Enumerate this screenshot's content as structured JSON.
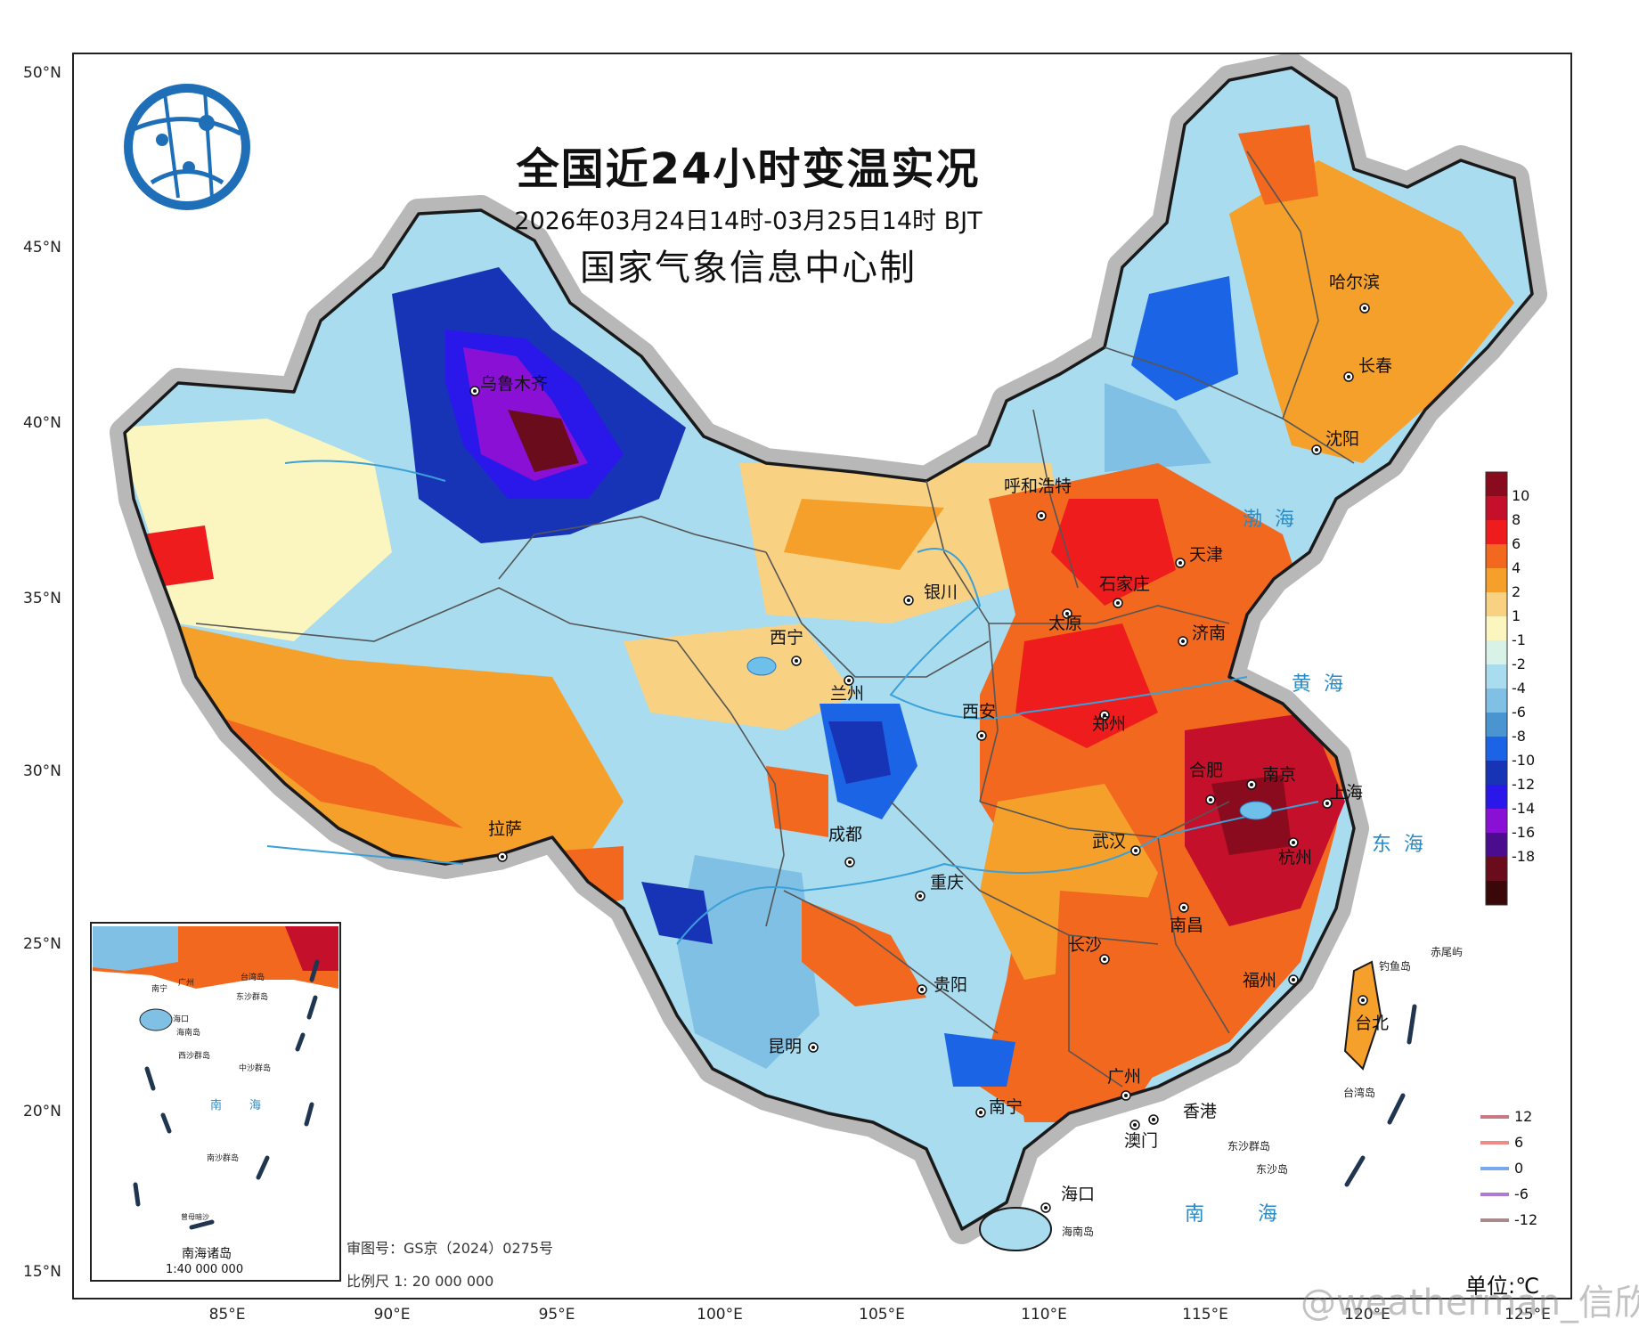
{
  "title": "全国近24小时变温实况",
  "time_range": "2026年03月24日14时-03月25日14时 BJT",
  "issuer": "国家气象信息中心制",
  "lat_labels": [
    "50°N",
    "45°N",
    "40°N",
    "35°N",
    "30°N",
    "25°N",
    "20°N",
    "15°N"
  ],
  "lon_labels": [
    "85°E",
    "90°E",
    "95°E",
    "100°E",
    "105°E",
    "110°E",
    "115°E",
    "120°E",
    "125°E"
  ],
  "cities": [
    {
      "name": "乌鲁木齐"
    },
    {
      "name": "哈尔滨"
    },
    {
      "name": "长春"
    },
    {
      "name": "沈阳"
    },
    {
      "name": "呼和浩特"
    },
    {
      "name": "天津"
    },
    {
      "name": "石家庄"
    },
    {
      "name": "银川"
    },
    {
      "name": "太原"
    },
    {
      "name": "济南"
    },
    {
      "name": "西宁"
    },
    {
      "name": "兰州"
    },
    {
      "name": "西安"
    },
    {
      "name": "郑州"
    },
    {
      "name": "合肥"
    },
    {
      "name": "南京"
    },
    {
      "name": "上海"
    },
    {
      "name": "拉萨"
    },
    {
      "name": "成都"
    },
    {
      "name": "武汉"
    },
    {
      "name": "杭州"
    },
    {
      "name": "重庆"
    },
    {
      "name": "南昌"
    },
    {
      "name": "长沙"
    },
    {
      "name": "福州"
    },
    {
      "name": "贵阳"
    },
    {
      "name": "台北"
    },
    {
      "name": "昆明"
    },
    {
      "name": "广州"
    },
    {
      "name": "南宁"
    },
    {
      "name": "香港"
    },
    {
      "name": "澳门"
    },
    {
      "name": "海口"
    }
  ],
  "seas": {
    "bohai": "渤海",
    "huanghai": "黄海",
    "donghai": "东海",
    "nanhai": "南海"
  },
  "small_labels": {
    "taiwan_island": "台湾岛",
    "hainan_island": "海南岛",
    "dongsha": "东沙群岛",
    "dongsha_dao": "东沙岛",
    "diaoyu": "钓鱼岛",
    "chiwei": "赤尾屿",
    "inset_south": "南",
    "inset_sea": "海",
    "inset_nansha": "南沙群岛",
    "inset_xisha": "西沙群岛",
    "inset_zhongsha": "中沙群岛",
    "inset_dongsha": "东沙群岛",
    "inset_taiwan": "台湾岛",
    "inset_haikou": "海口",
    "inset_hainan": "海南岛",
    "inset_nanning": "南宁",
    "inset_guangzhou": "广州",
    "inset_zengmu": "曾母暗沙"
  },
  "inset": {
    "title": "南海诸岛",
    "scale": "1:40 000 000"
  },
  "footnotes": {
    "approval": "审图号：GS京（2024）0275号",
    "scale": "比例尺  1:  20 000 000"
  },
  "unit": "单位:℃",
  "watermark": "@weatherman_信欣",
  "colorbar": {
    "labels": [
      "10",
      "8",
      "6",
      "4",
      "2",
      "1",
      "-1",
      "-2",
      "-4",
      "-6",
      "-8",
      "-10",
      "-12",
      "-14",
      "-16",
      "-18"
    ],
    "colors": [
      "#8a0a1e",
      "#c4102a",
      "#ee1c1c",
      "#f2681e",
      "#f6a02c",
      "#f8d282",
      "#fbf6c0",
      "#d8f2e8",
      "#a8dcee",
      "#80c0e4",
      "#4a94d2",
      "#1c64e6",
      "#1834b6",
      "#2a18ea",
      "#8a10d6",
      "#4c0c8e",
      "#6a0c1c",
      "#3a0808"
    ]
  },
  "isolines": {
    "values": [
      "12",
      "6",
      "0",
      "-6",
      "-12"
    ],
    "colors": [
      "#c87a84",
      "#f08a86",
      "#7aa8f0",
      "#b07ad0",
      "#a88a8c"
    ]
  }
}
